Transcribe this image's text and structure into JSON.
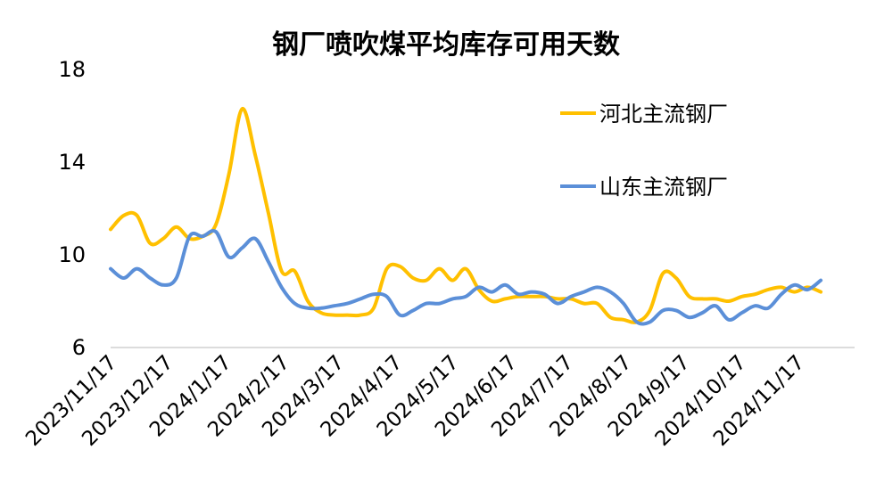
{
  "chart_data": {
    "type": "line",
    "title": "钢厂喷吹煤平均库存可用天数",
    "xlabel": "",
    "ylabel": "",
    "ylim": [
      6,
      18
    ],
    "yticks": [
      6,
      10,
      14,
      18
    ],
    "xlim": [
      "2023-11-17",
      "2024-12-17"
    ],
    "x_tick_labels": [
      "2023/11/17",
      "2023/12/17",
      "2024/1/17",
      "2024/2/17",
      "2024/3/17",
      "2024/4/17",
      "2024/5/17",
      "2024/6/17",
      "2024/7/17",
      "2024/8/17",
      "2024/9/17",
      "2024/10/17",
      "2024/11/17"
    ],
    "x_tick_dates": [
      "2023-11-17",
      "2023-12-17",
      "2024-01-17",
      "2024-02-17",
      "2024-03-17",
      "2024-04-17",
      "2024-05-17",
      "2024-06-17",
      "2024-07-17",
      "2024-08-17",
      "2024-09-17",
      "2024-10-17",
      "2024-11-17"
    ],
    "grid": false,
    "legend_position": "top-right",
    "series": [
      {
        "name": "河北主流钢厂",
        "color": "#FFC000",
        "points": [
          [
            "2023-11-17",
            11.1
          ],
          [
            "2023-11-24",
            11.7
          ],
          [
            "2023-12-01",
            11.7
          ],
          [
            "2023-12-08",
            10.5
          ],
          [
            "2023-12-15",
            10.7
          ],
          [
            "2023-12-22",
            11.2
          ],
          [
            "2023-12-29",
            10.7
          ],
          [
            "2024-01-05",
            10.8
          ],
          [
            "2024-01-12",
            11.3
          ],
          [
            "2024-01-19",
            13.5
          ],
          [
            "2024-01-26",
            16.3
          ],
          [
            "2024-02-02",
            14.3
          ],
          [
            "2024-02-09",
            11.8
          ],
          [
            "2024-02-16",
            9.3
          ],
          [
            "2024-02-23",
            9.3
          ],
          [
            "2024-03-01",
            8.0
          ],
          [
            "2024-03-08",
            7.5
          ],
          [
            "2024-03-15",
            7.4
          ],
          [
            "2024-03-22",
            7.4
          ],
          [
            "2024-03-29",
            7.4
          ],
          [
            "2024-04-05",
            7.7
          ],
          [
            "2024-04-12",
            9.4
          ],
          [
            "2024-04-19",
            9.5
          ],
          [
            "2024-04-26",
            9.0
          ],
          [
            "2024-05-03",
            8.9
          ],
          [
            "2024-05-10",
            9.4
          ],
          [
            "2024-05-17",
            8.9
          ],
          [
            "2024-05-24",
            9.4
          ],
          [
            "2024-05-31",
            8.5
          ],
          [
            "2024-06-07",
            8.0
          ],
          [
            "2024-06-14",
            8.1
          ],
          [
            "2024-06-21",
            8.2
          ],
          [
            "2024-06-28",
            8.2
          ],
          [
            "2024-07-05",
            8.2
          ],
          [
            "2024-07-12",
            8.1
          ],
          [
            "2024-07-19",
            8.1
          ],
          [
            "2024-07-26",
            7.9
          ],
          [
            "2024-08-02",
            7.9
          ],
          [
            "2024-08-09",
            7.3
          ],
          [
            "2024-08-16",
            7.2
          ],
          [
            "2024-08-23",
            7.1
          ],
          [
            "2024-08-30",
            7.6
          ],
          [
            "2024-09-06",
            9.2
          ],
          [
            "2024-09-13",
            9.0
          ],
          [
            "2024-09-20",
            8.2
          ],
          [
            "2024-09-27",
            8.1
          ],
          [
            "2024-10-04",
            8.1
          ],
          [
            "2024-10-11",
            8.0
          ],
          [
            "2024-10-18",
            8.2
          ],
          [
            "2024-10-25",
            8.3
          ],
          [
            "2024-11-01",
            8.5
          ],
          [
            "2024-11-08",
            8.6
          ],
          [
            "2024-11-15",
            8.4
          ],
          [
            "2024-11-22",
            8.6
          ],
          [
            "2024-11-29",
            8.4
          ]
        ]
      },
      {
        "name": "山东主流钢厂",
        "color": "#5B8FD8",
        "points": [
          [
            "2023-11-17",
            9.4
          ],
          [
            "2023-11-24",
            9.0
          ],
          [
            "2023-12-01",
            9.4
          ],
          [
            "2023-12-08",
            9.0
          ],
          [
            "2023-12-15",
            8.7
          ],
          [
            "2023-12-22",
            9.0
          ],
          [
            "2023-12-29",
            10.8
          ],
          [
            "2024-01-05",
            10.8
          ],
          [
            "2024-01-12",
            11.0
          ],
          [
            "2024-01-19",
            9.9
          ],
          [
            "2024-01-26",
            10.3
          ],
          [
            "2024-02-02",
            10.7
          ],
          [
            "2024-02-09",
            9.7
          ],
          [
            "2024-02-16",
            8.6
          ],
          [
            "2024-02-23",
            7.9
          ],
          [
            "2024-03-01",
            7.7
          ],
          [
            "2024-03-08",
            7.7
          ],
          [
            "2024-03-15",
            7.8
          ],
          [
            "2024-03-22",
            7.9
          ],
          [
            "2024-03-29",
            8.1
          ],
          [
            "2024-04-05",
            8.3
          ],
          [
            "2024-04-12",
            8.2
          ],
          [
            "2024-04-19",
            7.4
          ],
          [
            "2024-04-26",
            7.6
          ],
          [
            "2024-05-03",
            7.9
          ],
          [
            "2024-05-10",
            7.9
          ],
          [
            "2024-05-17",
            8.1
          ],
          [
            "2024-05-24",
            8.2
          ],
          [
            "2024-05-31",
            8.6
          ],
          [
            "2024-06-07",
            8.4
          ],
          [
            "2024-06-14",
            8.7
          ],
          [
            "2024-06-21",
            8.3
          ],
          [
            "2024-06-28",
            8.4
          ],
          [
            "2024-07-05",
            8.3
          ],
          [
            "2024-07-12",
            7.9
          ],
          [
            "2024-07-19",
            8.2
          ],
          [
            "2024-07-26",
            8.4
          ],
          [
            "2024-08-02",
            8.6
          ],
          [
            "2024-08-09",
            8.4
          ],
          [
            "2024-08-16",
            7.9
          ],
          [
            "2024-08-23",
            7.1
          ],
          [
            "2024-08-30",
            7.1
          ],
          [
            "2024-09-06",
            7.6
          ],
          [
            "2024-09-13",
            7.6
          ],
          [
            "2024-09-20",
            7.3
          ],
          [
            "2024-09-27",
            7.5
          ],
          [
            "2024-10-04",
            7.8
          ],
          [
            "2024-10-11",
            7.2
          ],
          [
            "2024-10-18",
            7.5
          ],
          [
            "2024-10-25",
            7.8
          ],
          [
            "2024-11-01",
            7.7
          ],
          [
            "2024-11-08",
            8.3
          ],
          [
            "2024-11-15",
            8.7
          ],
          [
            "2024-11-22",
            8.5
          ],
          [
            "2024-11-29",
            8.9
          ]
        ]
      }
    ]
  }
}
